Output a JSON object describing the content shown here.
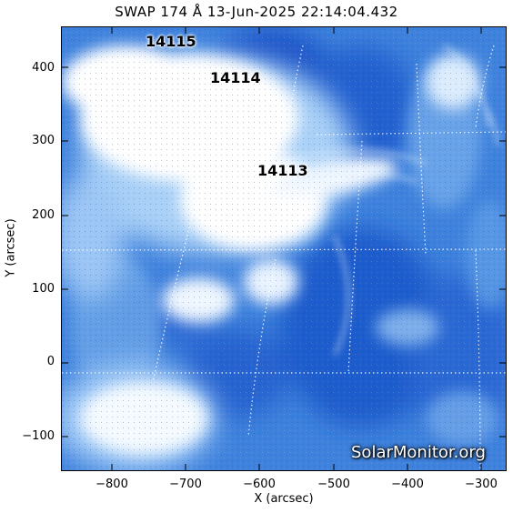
{
  "title": "SWAP 174 Å 13-Jun-2025 22:14:04.432",
  "axes": {
    "xlabel": "X (arcsec)",
    "ylabel": "Y (arcsec)",
    "x_ticks": [
      "−800",
      "−700",
      "−600",
      "−500",
      "−400",
      "−300"
    ],
    "y_ticks": [
      "400",
      "300",
      "200",
      "100",
      "0",
      "−100"
    ]
  },
  "active_regions": {
    "ar1": "14115",
    "ar2": "14114",
    "ar3": "14113"
  },
  "watermark": "SolarMonitor.org",
  "colors": {
    "image_dark": "#1f5fcf",
    "image_mid": "#5f9ee6",
    "image_light": "#c9e2fb",
    "saturated": "#ffffff"
  }
}
